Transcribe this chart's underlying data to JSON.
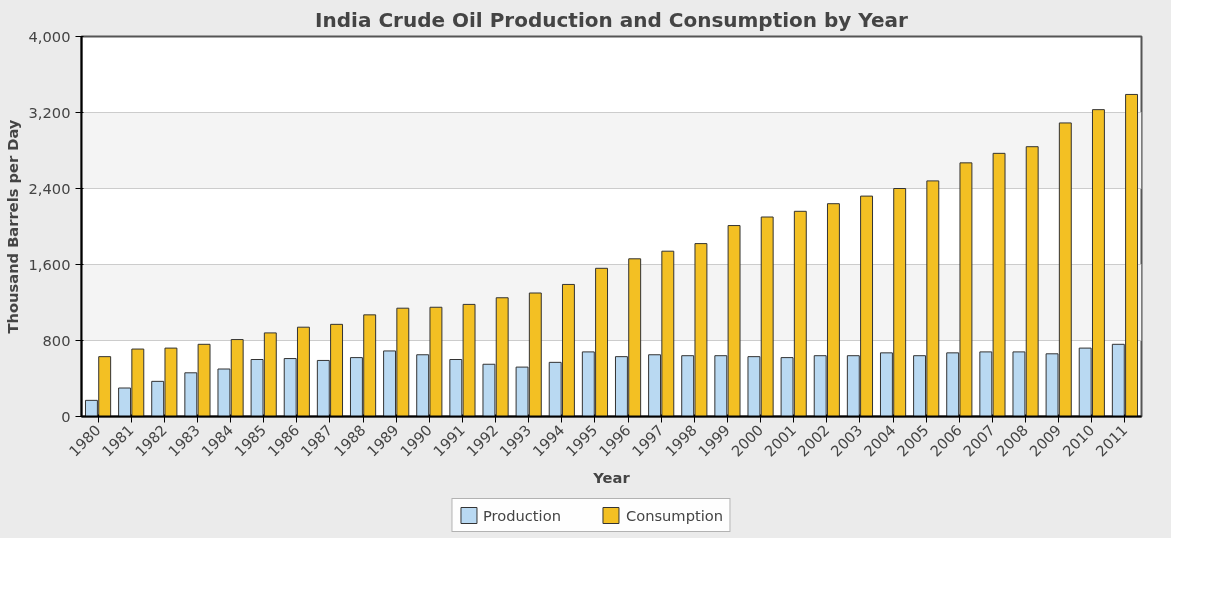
{
  "chart_data": {
    "type": "bar",
    "title": "India Crude Oil Production and Consumption by Year",
    "xlabel": "Year",
    "ylabel": "Thousand Barrels per Day",
    "categories": [
      "1980",
      "1981",
      "1982",
      "1983",
      "1984",
      "1985",
      "1986",
      "1987",
      "1988",
      "1989",
      "1990",
      "1991",
      "1992",
      "1993",
      "1994",
      "1995",
      "1996",
      "1997",
      "1998",
      "1999",
      "2000",
      "2001",
      "2002",
      "2003",
      "2004",
      "2005",
      "2006",
      "2007",
      "2008",
      "2009",
      "2010",
      "2011"
    ],
    "series": [
      {
        "name": "Production",
        "color": "#b9d9f2",
        "values": [
          170,
          300,
          370,
          460,
          500,
          600,
          610,
          590,
          620,
          690,
          650,
          600,
          550,
          520,
          570,
          680,
          630,
          650,
          640,
          640,
          630,
          620,
          640,
          640,
          670,
          640,
          670,
          680,
          680,
          660,
          720,
          760
        ]
      },
      {
        "name": "Consumption",
        "color": "#f3c023",
        "values": [
          630,
          710,
          720,
          760,
          810,
          880,
          940,
          970,
          1070,
          1140,
          1150,
          1180,
          1250,
          1300,
          1390,
          1560,
          1660,
          1740,
          1820,
          2010,
          2100,
          2160,
          2240,
          2320,
          2400,
          2480,
          2670,
          2770,
          2840,
          3090,
          3230,
          3390
        ]
      }
    ],
    "ylim": [
      0,
      4000
    ],
    "yticks": [
      {
        "value": 0,
        "label": "0"
      },
      {
        "value": 800,
        "label": "800"
      },
      {
        "value": 1600,
        "label": "1,600"
      },
      {
        "value": 2400,
        "label": "2,400"
      },
      {
        "value": 3200,
        "label": "3,200"
      },
      {
        "value": 4000,
        "label": "4,000"
      }
    ],
    "grid": "y",
    "legend": "bottom"
  }
}
